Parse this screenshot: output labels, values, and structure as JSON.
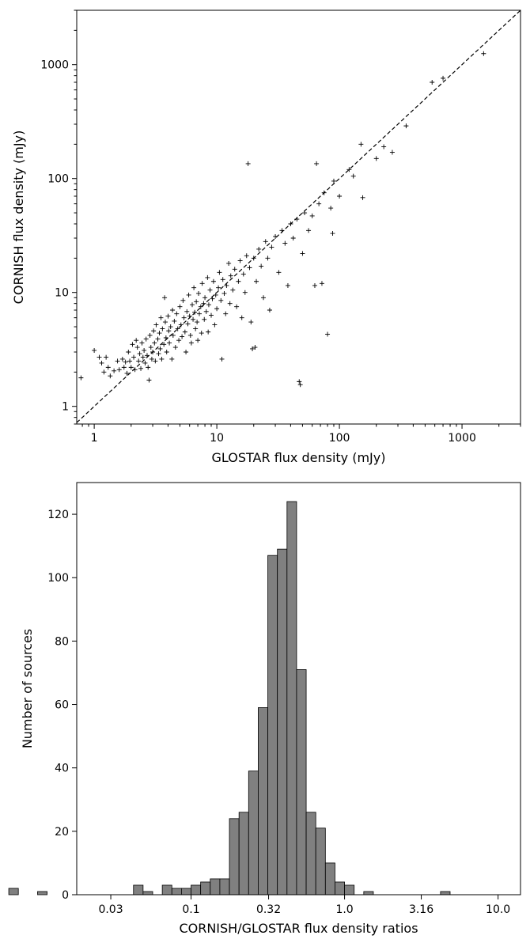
{
  "chart_data": [
    {
      "type": "scatter",
      "xlabel": "GLOSTAR flux density (mJy)",
      "ylabel": "CORNISH flux density (mJy)",
      "xscale": "log",
      "yscale": "log",
      "xlim": [
        0.72,
        3000
      ],
      "ylim": [
        0.7,
        3000
      ],
      "xticks": [
        1,
        10,
        100,
        1000
      ],
      "xtick_labels": [
        "1",
        "10",
        "100",
        "1000"
      ],
      "yticks": [
        1,
        10,
        100,
        1000
      ],
      "ytick_labels": [
        "1",
        "10",
        "100",
        "1000"
      ],
      "marker": "+",
      "reference_line": "y = x (dashed)",
      "grid": false,
      "points": [
        [
          0.78,
          1.78
        ],
        [
          1.0,
          3.1
        ],
        [
          1.1,
          2.7
        ],
        [
          1.15,
          2.4
        ],
        [
          1.2,
          2.0
        ],
        [
          1.25,
          2.7
        ],
        [
          1.3,
          2.2
        ],
        [
          1.35,
          1.85
        ],
        [
          1.45,
          2.05
        ],
        [
          1.55,
          2.5
        ],
        [
          1.6,
          2.1
        ],
        [
          1.7,
          2.6
        ],
        [
          1.75,
          2.2
        ],
        [
          1.8,
          2.45
        ],
        [
          1.85,
          1.95
        ],
        [
          1.9,
          3.0
        ],
        [
          1.95,
          2.5
        ],
        [
          2.0,
          2.2
        ],
        [
          2.05,
          3.5
        ],
        [
          2.1,
          2.7
        ],
        [
          2.15,
          2.1
        ],
        [
          2.2,
          3.8
        ],
        [
          2.25,
          3.3
        ],
        [
          2.3,
          2.5
        ],
        [
          2.35,
          2.9
        ],
        [
          2.4,
          2.15
        ],
        [
          2.45,
          3.6
        ],
        [
          2.5,
          2.7
        ],
        [
          2.55,
          3.1
        ],
        [
          2.6,
          2.4
        ],
        [
          2.65,
          3.9
        ],
        [
          2.7,
          2.8
        ],
        [
          2.75,
          2.2
        ],
        [
          2.8,
          1.7
        ],
        [
          2.85,
          4.2
        ],
        [
          2.9,
          3.3
        ],
        [
          2.95,
          2.6
        ],
        [
          3.0,
          3.0
        ],
        [
          3.05,
          4.6
        ],
        [
          3.1,
          3.6
        ],
        [
          3.15,
          2.5
        ],
        [
          3.2,
          5.2
        ],
        [
          3.3,
          3.9
        ],
        [
          3.35,
          2.9
        ],
        [
          3.4,
          4.4
        ],
        [
          3.45,
          3.2
        ],
        [
          3.5,
          6.0
        ],
        [
          3.55,
          2.6
        ],
        [
          3.6,
          4.8
        ],
        [
          3.7,
          3.5
        ],
        [
          3.75,
          9.0
        ],
        [
          3.8,
          5.5
        ],
        [
          3.85,
          4.0
        ],
        [
          3.9,
          3.0
        ],
        [
          4.0,
          6.2
        ],
        [
          4.05,
          4.6
        ],
        [
          4.1,
          3.6
        ],
        [
          4.2,
          5.0
        ],
        [
          4.3,
          2.6
        ],
        [
          4.35,
          7.0
        ],
        [
          4.4,
          4.2
        ],
        [
          4.5,
          5.6
        ],
        [
          4.6,
          3.3
        ],
        [
          4.7,
          6.5
        ],
        [
          4.8,
          4.8
        ],
        [
          4.9,
          3.8
        ],
        [
          5.0,
          7.5
        ],
        [
          5.1,
          5.2
        ],
        [
          5.2,
          4.1
        ],
        [
          5.3,
          8.5
        ],
        [
          5.4,
          6.0
        ],
        [
          5.5,
          4.5
        ],
        [
          5.6,
          3.0
        ],
        [
          5.7,
          6.8
        ],
        [
          5.8,
          5.3
        ],
        [
          5.9,
          9.5
        ],
        [
          6.0,
          6.2
        ],
        [
          6.1,
          4.2
        ],
        [
          6.2,
          3.6
        ],
        [
          6.3,
          7.8
        ],
        [
          6.4,
          5.8
        ],
        [
          6.5,
          11.0
        ],
        [
          6.6,
          6.7
        ],
        [
          6.7,
          4.8
        ],
        [
          6.8,
          8.3
        ],
        [
          6.9,
          5.5
        ],
        [
          7.0,
          3.8
        ],
        [
          7.1,
          9.8
        ],
        [
          7.2,
          6.5
        ],
        [
          7.4,
          7.5
        ],
        [
          7.5,
          4.4
        ],
        [
          7.6,
          12.0
        ],
        [
          7.8,
          8.0
        ],
        [
          7.9,
          5.8
        ],
        [
          8.0,
          9.0
        ],
        [
          8.2,
          6.8
        ],
        [
          8.4,
          13.5
        ],
        [
          8.5,
          4.5
        ],
        [
          8.6,
          7.8
        ],
        [
          8.8,
          10.5
        ],
        [
          9.0,
          6.3
        ],
        [
          9.2,
          8.8
        ],
        [
          9.4,
          12.5
        ],
        [
          9.6,
          5.2
        ],
        [
          9.8,
          9.5
        ],
        [
          10.0,
          7.2
        ],
        [
          10.3,
          11.0
        ],
        [
          10.5,
          15.0
        ],
        [
          10.8,
          8.5
        ],
        [
          11.0,
          2.6
        ],
        [
          11.2,
          13.0
        ],
        [
          11.5,
          9.8
        ],
        [
          11.8,
          6.5
        ],
        [
          12.0,
          11.5
        ],
        [
          12.5,
          18.0
        ],
        [
          12.8,
          8.0
        ],
        [
          13.0,
          14.0
        ],
        [
          13.5,
          10.5
        ],
        [
          14.0,
          16.0
        ],
        [
          14.5,
          7.5
        ],
        [
          15.0,
          12.5
        ],
        [
          15.5,
          19.0
        ],
        [
          16.0,
          6.0
        ],
        [
          16.5,
          14.5
        ],
        [
          17.0,
          10.0
        ],
        [
          17.5,
          21.0
        ],
        [
          18.0,
          135.0
        ],
        [
          18.5,
          16.5
        ],
        [
          19.0,
          5.5
        ],
        [
          19.5,
          3.2
        ],
        [
          20.0,
          20.0
        ],
        [
          20.5,
          3.3
        ],
        [
          21.0,
          12.5
        ],
        [
          22.0,
          24.0
        ],
        [
          23.0,
          17.0
        ],
        [
          24.0,
          9.0
        ],
        [
          25.0,
          28.0
        ],
        [
          26.0,
          20.0
        ],
        [
          27.0,
          7.0
        ],
        [
          28.0,
          25.0
        ],
        [
          30.0,
          31.0
        ],
        [
          32.0,
          15.0
        ],
        [
          34.0,
          35.0
        ],
        [
          36.0,
          27.0
        ],
        [
          38.0,
          11.5
        ],
        [
          40.0,
          40.0
        ],
        [
          42.0,
          30.0
        ],
        [
          45.0,
          44.0
        ],
        [
          47.0,
          1.65
        ],
        [
          48.0,
          1.55
        ],
        [
          50.0,
          22.0
        ],
        [
          52.0,
          50.0
        ],
        [
          56.0,
          35.0
        ],
        [
          60.0,
          47.0
        ],
        [
          63.0,
          11.5
        ],
        [
          65.0,
          135.0
        ],
        [
          68.0,
          60.0
        ],
        [
          72.0,
          12.0
        ],
        [
          75.0,
          75.0
        ],
        [
          80.0,
          4.3
        ],
        [
          85.0,
          55.0
        ],
        [
          88.0,
          33.0
        ],
        [
          90.0,
          95.0
        ],
        [
          100.0,
          70.0
        ],
        [
          120.0,
          120.0
        ],
        [
          130.0,
          105.0
        ],
        [
          150.0,
          200.0
        ],
        [
          155.0,
          68.0
        ],
        [
          200.0,
          150.0
        ],
        [
          230.0,
          190.0
        ],
        [
          270.0,
          170.0
        ],
        [
          350.0,
          290.0
        ],
        [
          570.0,
          700.0
        ],
        [
          700.0,
          760.0
        ],
        [
          1500.0,
          1250.0
        ]
      ]
    },
    {
      "type": "bar",
      "subtype": "histogram",
      "xlabel": "CORNISH/GLOSTAR flux density ratios",
      "ylabel": "Number of sources",
      "xscale": "log",
      "xlim": [
        0.018,
        14.0
      ],
      "ylim": [
        0,
        130
      ],
      "xticks": [
        0.03,
        0.1,
        0.32,
        1.0,
        3.16,
        10.0
      ],
      "xtick_labels": [
        "0.03",
        "0.1",
        "0.32",
        "1.0",
        "3.16",
        "10.0"
      ],
      "yticks": [
        0,
        20,
        40,
        60,
        80,
        100,
        120
      ],
      "ytick_labels": [
        "0",
        "20",
        "40",
        "60",
        "80",
        "100",
        "120"
      ],
      "bin_log10_width": 0.0625,
      "bins": [
        {
          "log10_left": -1.5625,
          "count": 2
        },
        {
          "log10_left": -1.375,
          "count": 1
        },
        {
          "log10_left": -0.75,
          "count": 3
        },
        {
          "log10_left": -0.6875,
          "count": 1
        },
        {
          "log10_left": -0.5625,
          "count": 3
        },
        {
          "log10_left": -0.5,
          "count": 2
        },
        {
          "log10_left": -0.4375,
          "count": 2
        },
        {
          "log10_left": -0.375,
          "count": 3
        },
        {
          "log10_left": -0.3125,
          "count": 4
        },
        {
          "log10_left": -0.25,
          "count": 5
        },
        {
          "log10_left": -0.1875,
          "count": 5
        },
        {
          "log10_left": -0.125,
          "count": 24
        },
        {
          "log10_left": -0.0625,
          "count": 26
        },
        {
          "log10_left": 0.0,
          "count": 39
        },
        {
          "log10_left": 0.0625,
          "count": 59
        },
        {
          "log10_left": 0.125,
          "count": 107
        },
        {
          "log10_left": 0.1875,
          "count": 109
        },
        {
          "log10_left": 0.25,
          "count": 124
        },
        {
          "log10_left": 0.3125,
          "count": 71
        },
        {
          "log10_left": 0.375,
          "count": 26
        },
        {
          "log10_left": 0.4375,
          "count": 21
        },
        {
          "log10_left": 0.5,
          "count": 10
        },
        {
          "log10_left": 0.5625,
          "count": 4
        },
        {
          "log10_left": 0.625,
          "count": 3
        },
        {
          "log10_left": 0.75,
          "count": 1
        },
        {
          "log10_left": 1.25,
          "count": 1
        }
      ],
      "bar_color": "#808080"
    }
  ]
}
